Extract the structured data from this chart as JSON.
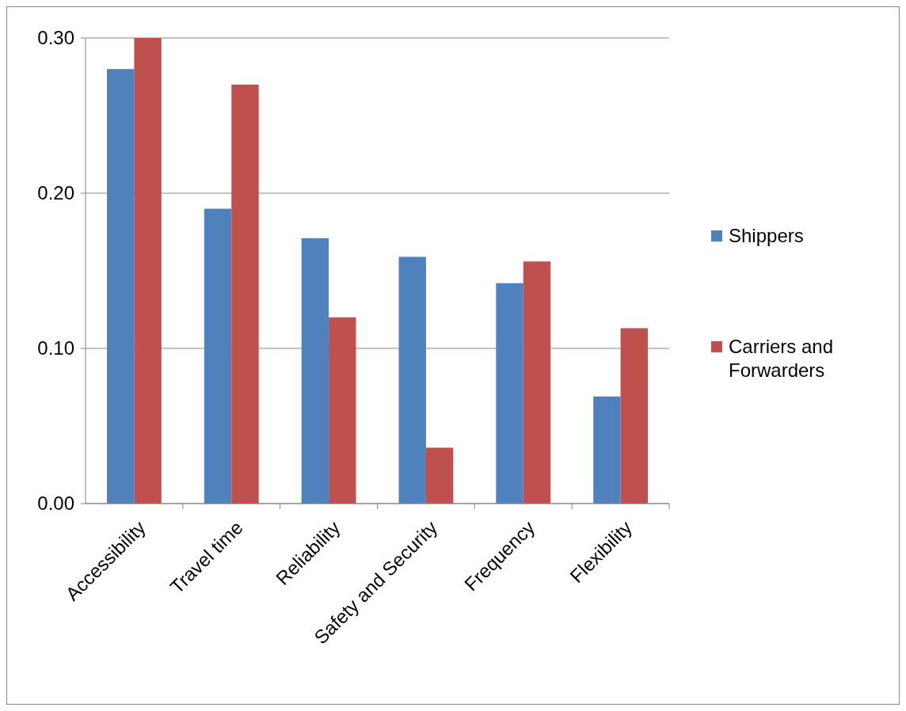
{
  "chart_data": {
    "type": "bar",
    "categories": [
      "Accessibility",
      "Travel time",
      "Reliability",
      "Safety and Security",
      "Frequency",
      "Flexibility"
    ],
    "series": [
      {
        "name": "Shippers",
        "color": "#4f81bd",
        "values": [
          0.28,
          0.19,
          0.171,
          0.159,
          0.142,
          0.069
        ]
      },
      {
        "name": "Carriers and Forwarders",
        "color": "#c0504d",
        "values": [
          0.3,
          0.27,
          0.12,
          0.036,
          0.156,
          0.113
        ]
      }
    ],
    "ylim": [
      0,
      0.3
    ],
    "yticks": [
      {
        "value": 0,
        "label": "0.00"
      },
      {
        "value": 0.1,
        "label": "0.10"
      },
      {
        "value": 0.2,
        "label": "0.20"
      },
      {
        "value": 0.3,
        "label": "0.30"
      }
    ],
    "grid": "y",
    "legend": "right"
  }
}
